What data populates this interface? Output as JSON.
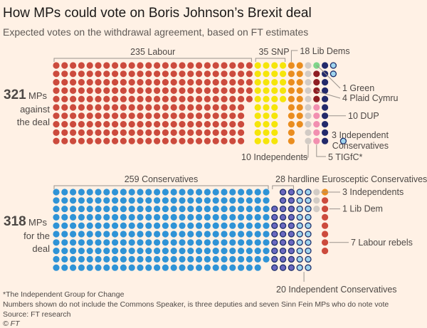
{
  "title": "How MPs could vote on Boris Johnson’s Brexit deal",
  "subtitle": "Expected votes on the withdrawal agreement, based on FT estimates",
  "footnotes": {
    "asterisk": "*The Independent Group for Change",
    "note": "Numbers shown do not include the Commons Speaker, is three deputies and seven Sinn Fein MPs who do note vote",
    "source": "Source: FT research",
    "credit": "© FT"
  },
  "colors": {
    "labour": "#cc4b3d",
    "snp": "#f5e50a",
    "libdem": "#ea8d1f",
    "green": "#7fd68a",
    "plaid": "#8f1d22",
    "dup": "#222a6b",
    "independent": "#d2cbc5",
    "tig": "#f28fb0",
    "conservative": "#2f93d6",
    "erg": "#6a68c0",
    "indcon": "#9fd5ef"
  },
  "chart_data": [
    {
      "type": "waffle",
      "name": "against",
      "total_number": "321",
      "total_unit": "MPs",
      "label_lines": [
        "against",
        "the deal"
      ],
      "groups": [
        {
          "key": "labour",
          "count": 235,
          "label": "235 Labour"
        },
        {
          "key": "snp",
          "count": 35,
          "label": "35 SNP"
        },
        {
          "key": "libdem",
          "count": 18,
          "label": "18 Lib Dems"
        },
        {
          "key": "independent",
          "count": 10,
          "label": "10 Independents"
        },
        {
          "key": "green",
          "count": 1,
          "label": "1 Green"
        },
        {
          "key": "plaid",
          "count": 4,
          "label": "4 Plaid Cymru"
        },
        {
          "key": "tig",
          "count": 5,
          "label": "5 TIGfC*"
        },
        {
          "key": "dup",
          "count": 10,
          "label": "10 DUP"
        },
        {
          "key": "indcon",
          "count": 3,
          "label_lines": [
            "3 Independent",
            "Conservatives"
          ]
        }
      ]
    },
    {
      "type": "waffle",
      "name": "for",
      "total_number": "318",
      "total_unit": "MPs",
      "label_lines": [
        "for the",
        "deal"
      ],
      "groups": [
        {
          "key": "conservative",
          "count": 259,
          "label": "259 Conservatives"
        },
        {
          "key": "erg",
          "count": 28,
          "label": "28 hardline Eurosceptic Conservatives"
        },
        {
          "key": "indcon",
          "count": 20,
          "label": "20 Independent Conservatives"
        },
        {
          "key": "independent",
          "count": 3,
          "label": "3 Independents"
        },
        {
          "key": "libdem",
          "count": 1,
          "label": "1 Lib Dem"
        },
        {
          "key": "labour",
          "count": 7,
          "label": "7 Labour rebels"
        }
      ]
    }
  ]
}
